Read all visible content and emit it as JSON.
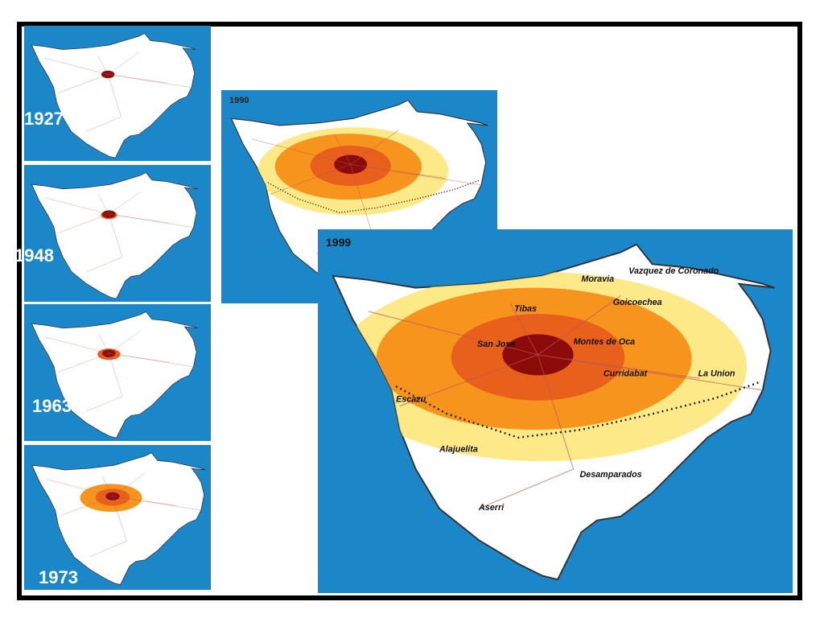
{
  "panels": [
    {
      "year": "1927"
    },
    {
      "year": "1948"
    },
    {
      "year": "1963"
    },
    {
      "year": "1973"
    },
    {
      "year": "1990"
    },
    {
      "year": "1999"
    }
  ],
  "labels": [
    "Moravia",
    "Vazquez de Coronado",
    "Tibas",
    "Goicoechea",
    "San Jose",
    "Montes de Oca",
    "Curridabat",
    "La Union",
    "Escazu",
    "Alajuelita",
    "Desamparados",
    "Aserri"
  ]
}
